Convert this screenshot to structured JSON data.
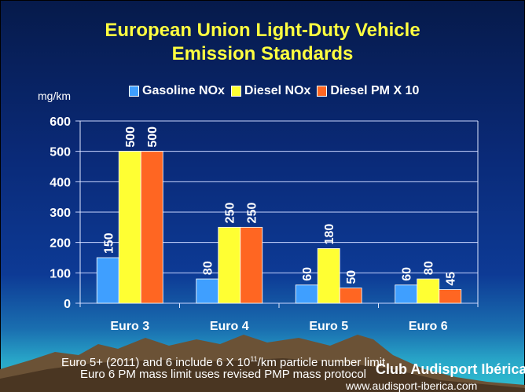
{
  "colors": {
    "gasoline_nox": "#3f9fff",
    "diesel_nox": "#ffff33",
    "diesel_pm": "#ff6622",
    "title": "#ffff40"
  },
  "chart_data": {
    "type": "bar",
    "title": "European Union Light-Duty Vehicle Emission Standards",
    "title_lines": [
      "European Union Light-Duty Vehicle",
      "Emission Standards"
    ],
    "ylabel": "mg/km",
    "xlabel": "",
    "ylim": [
      0,
      600
    ],
    "yticks": [
      "0",
      "100",
      "200",
      "300",
      "400",
      "500",
      "600"
    ],
    "grid": true,
    "legend_position": "top-center",
    "categories": [
      "Euro 3",
      "Euro 4",
      "Euro 5",
      "Euro 6"
    ],
    "series": [
      {
        "name": "Gasoline NOx",
        "values": [
          150,
          80,
          60,
          60
        ],
        "labels": [
          "150",
          "80",
          "60",
          "60"
        ]
      },
      {
        "name": "Diesel NOx",
        "values": [
          500,
          250,
          180,
          80
        ],
        "labels": [
          "500",
          "250",
          "180",
          "80"
        ]
      },
      {
        "name": "Diesel PM X 10",
        "values": [
          500,
          250,
          50,
          45
        ],
        "labels": [
          "500",
          "250",
          "50",
          "45"
        ]
      }
    ]
  },
  "notes": {
    "line1_pre": "Euro 5+ (2011) and 6 include 6 X 10",
    "line1_sup": "11",
    "line1_post": "/km particle number limit",
    "line2": "Euro 6 PM mass limit uses revised PMP mass protocol"
  },
  "branding": {
    "name": "Club Audisport Ibérica",
    "url": "www.audisport-iberica.com"
  }
}
